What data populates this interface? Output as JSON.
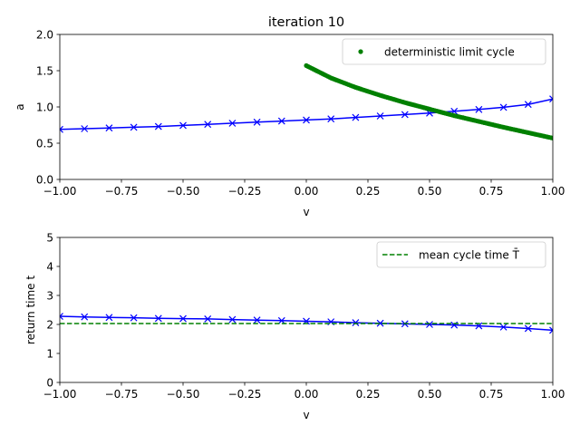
{
  "chart_data": [
    {
      "type": "line",
      "title": "iteration 10",
      "xlabel": "v",
      "ylabel": "a",
      "xlim": [
        -1.0,
        1.0
      ],
      "ylim": [
        0.0,
        2.0
      ],
      "xticks": [
        "−1.00",
        "−0.75",
        "−0.50",
        "−0.25",
        "0.00",
        "0.25",
        "0.50",
        "0.75",
        "1.00"
      ],
      "yticks": [
        "0.0",
        "0.5",
        "1.0",
        "1.5",
        "2.0"
      ],
      "grid": false,
      "legend_position": "top-right",
      "series": [
        {
          "color": "#0000ff",
          "marker": "x",
          "x": [
            -1.0,
            -0.9,
            -0.8,
            -0.7,
            -0.6,
            -0.5,
            -0.4,
            -0.3,
            -0.2,
            -0.1,
            0.0,
            0.1,
            0.2,
            0.3,
            0.4,
            0.5,
            0.6,
            0.7,
            0.8,
            0.9,
            1.0
          ],
          "y": [
            0.69,
            0.7,
            0.71,
            0.72,
            0.73,
            0.745,
            0.76,
            0.775,
            0.79,
            0.805,
            0.82,
            0.835,
            0.855,
            0.875,
            0.895,
            0.915,
            0.94,
            0.965,
            0.995,
            1.035,
            1.11
          ]
        },
        {
          "name": "deterministic limit cycle",
          "color": "#008000",
          "marker": "dot",
          "x": [
            0.0,
            0.1,
            0.2,
            0.3,
            0.4,
            0.5,
            0.6,
            0.7,
            0.8,
            0.9,
            1.0
          ],
          "y": [
            1.57,
            1.4,
            1.27,
            1.16,
            1.06,
            0.97,
            0.88,
            0.8,
            0.72,
            0.645,
            0.57
          ]
        }
      ]
    },
    {
      "type": "line",
      "title": "",
      "xlabel": "v",
      "ylabel": "return time t",
      "xlim": [
        -1.0,
        1.0
      ],
      "ylim": [
        0,
        5
      ],
      "xticks": [
        "−1.00",
        "−0.75",
        "−0.50",
        "−0.25",
        "0.00",
        "0.25",
        "0.50",
        "0.75",
        "1.00"
      ],
      "yticks": [
        "0",
        "1",
        "2",
        "3",
        "4",
        "5"
      ],
      "grid": false,
      "legend_position": "top-right",
      "series": [
        {
          "color": "#0000ff",
          "marker": "x",
          "x": [
            -1.0,
            -0.9,
            -0.8,
            -0.7,
            -0.6,
            -0.5,
            -0.4,
            -0.3,
            -0.2,
            -0.1,
            0.0,
            0.1,
            0.2,
            0.3,
            0.4,
            0.5,
            0.6,
            0.7,
            0.8,
            0.9,
            1.0
          ],
          "y": [
            2.28,
            2.26,
            2.24,
            2.23,
            2.21,
            2.2,
            2.19,
            2.17,
            2.15,
            2.13,
            2.11,
            2.09,
            2.06,
            2.04,
            2.02,
            2.0,
            1.98,
            1.95,
            1.91,
            1.86,
            1.8
          ]
        },
        {
          "name": "mean cycle time  T̄",
          "color": "#008000",
          "style": "dashed",
          "x": [
            -1.0,
            1.0
          ],
          "y": [
            2.03,
            2.03
          ]
        }
      ]
    }
  ]
}
